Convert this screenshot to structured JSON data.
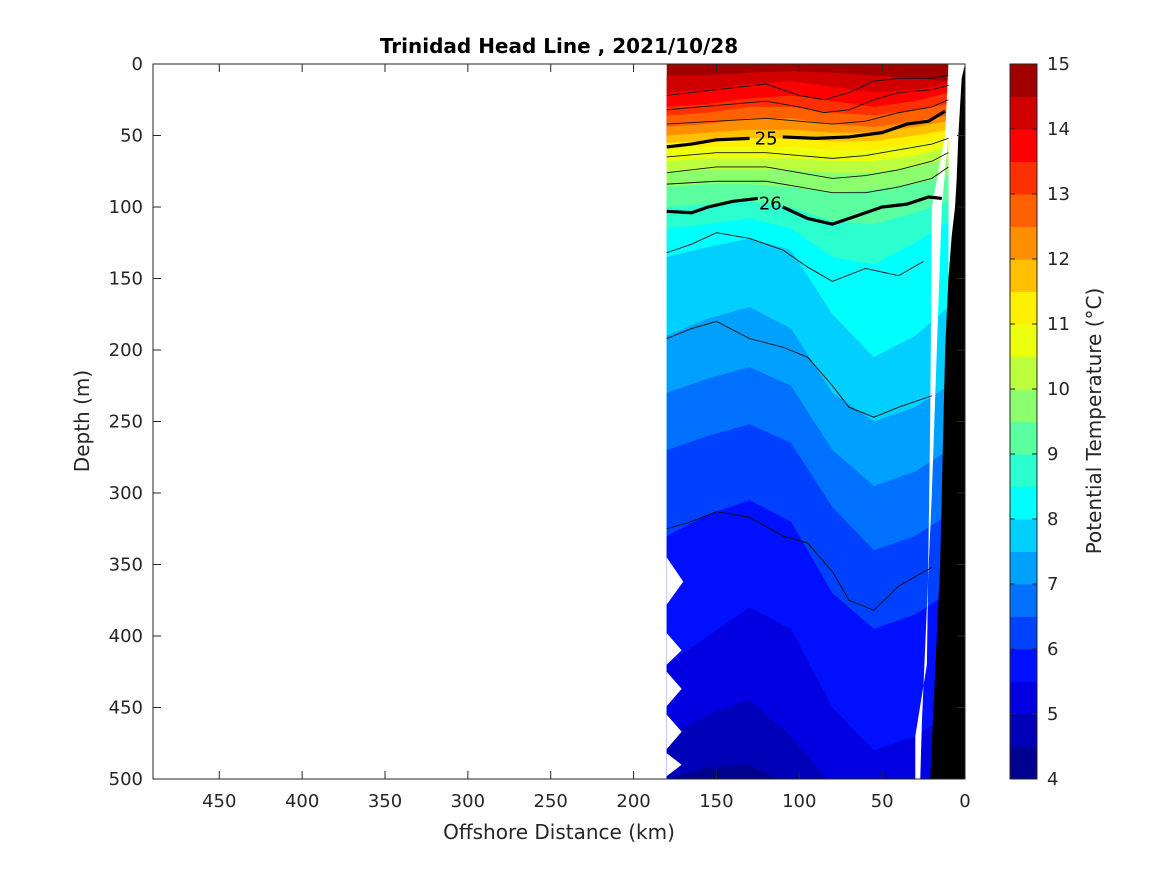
{
  "chart_data": {
    "type": "heatmap",
    "title": "Trinidad Head Line , 2021/10/28",
    "xlabel": "Offshore Distance (km)",
    "ylabel": "Depth (m)",
    "colorbar_label": "Potential Temperature (°C)",
    "xlim": [
      490,
      0
    ],
    "ylim": [
      500,
      0
    ],
    "x_ticks": [
      "450",
      "400",
      "350",
      "300",
      "250",
      "200",
      "150",
      "100",
      "50",
      "0"
    ],
    "y_ticks": [
      "0",
      "50",
      "100",
      "150",
      "200",
      "250",
      "300",
      "350",
      "400",
      "450",
      "500"
    ],
    "colorbar_ticks": [
      "4",
      "5",
      "6",
      "7",
      "8",
      "9",
      "10",
      "11",
      "12",
      "13",
      "14",
      "15"
    ],
    "colorbar_range": [
      4,
      15
    ],
    "colormap": [
      "#00008f",
      "#0000b8",
      "#0000e0",
      "#0010ff",
      "#0040ff",
      "#0070ff",
      "#00a0ff",
      "#00cfff",
      "#00ffff",
      "#2cffcf",
      "#5cff9f",
      "#8cff6f",
      "#bcff3f",
      "#ecff0f",
      "#ffef00",
      "#ffc000",
      "#ff8f00",
      "#ff6000",
      "#ff3000",
      "#ff0000",
      "#d00000",
      "#a00000"
    ],
    "section_x_range": [
      180,
      10
    ],
    "temperature_levels": [
      {
        "temp": 14.5,
        "depth": [
          8,
          8,
          6,
          5,
          6,
          8,
          10,
          12
        ]
      },
      {
        "temp": 14.0,
        "depth": [
          20,
          18,
          14,
          12,
          16,
          20,
          18,
          14
        ]
      },
      {
        "temp": 13.5,
        "depth": [
          30,
          28,
          24,
          22,
          26,
          30,
          26,
          20
        ]
      },
      {
        "temp": 13.0,
        "depth": [
          36,
          34,
          30,
          30,
          34,
          36,
          32,
          28
        ]
      },
      {
        "temp": 12.5,
        "depth": [
          44,
          42,
          38,
          38,
          42,
          44,
          40,
          36
        ]
      },
      {
        "temp": 12.0,
        "depth": [
          50,
          48,
          46,
          46,
          48,
          48,
          44,
          40
        ]
      },
      {
        "temp": 11.5,
        "depth": [
          55,
          54,
          52,
          52,
          54,
          54,
          50,
          46
        ]
      },
      {
        "temp": 11.0,
        "depth": [
          60,
          58,
          58,
          58,
          60,
          60,
          56,
          52
        ]
      },
      {
        "temp": 10.5,
        "depth": [
          68,
          66,
          66,
          66,
          68,
          68,
          64,
          58
        ]
      },
      {
        "temp": 10.0,
        "depth": [
          76,
          74,
          74,
          74,
          76,
          76,
          72,
          66
        ]
      },
      {
        "temp": 9.5,
        "depth": [
          86,
          84,
          84,
          86,
          90,
          88,
          84,
          78
        ]
      },
      {
        "temp": 9.0,
        "depth": [
          100,
          98,
          96,
          100,
          110,
          112,
          104,
          96
        ]
      },
      {
        "temp": 8.5,
        "depth": [
          115,
          112,
          108,
          115,
          135,
          140,
          125,
          110
        ]
      },
      {
        "temp": 8.0,
        "depth": [
          135,
          128,
          122,
          130,
          175,
          205,
          190,
          170
        ]
      },
      {
        "temp": 7.5,
        "depth": [
          190,
          178,
          170,
          185,
          230,
          250,
          240,
          225
        ]
      },
      {
        "temp": 7.0,
        "depth": [
          230,
          220,
          212,
          225,
          270,
          295,
          285,
          270
        ]
      },
      {
        "temp": 6.5,
        "depth": [
          270,
          260,
          252,
          265,
          310,
          340,
          330,
          315
        ]
      },
      {
        "temp": 6.0,
        "depth": [
          330,
          315,
          305,
          320,
          370,
          395,
          385,
          370
        ]
      },
      {
        "temp": 5.5,
        "depth": [
          420,
          400,
          380,
          395,
          450,
          480,
          470,
          455
        ]
      },
      {
        "temp": 5.0,
        "depth": [
          470,
          455,
          445,
          470,
          510,
          510,
          510,
          510
        ]
      },
      {
        "temp": 4.5,
        "depth": [
          500,
          492,
          490,
          510,
          510,
          510,
          510,
          510
        ]
      }
    ],
    "level_x": [
      180,
      155,
      130,
      105,
      80,
      55,
      30,
      10
    ],
    "density_contours": [
      {
        "label": "25",
        "x": [
          180,
          165,
          150,
          130,
          110,
          90,
          70,
          50,
          35,
          22,
          12
        ],
        "depth": [
          58,
          56,
          53,
          52,
          51,
          52,
          51,
          48,
          42,
          40,
          33
        ]
      },
      {
        "label": "26",
        "x": [
          180,
          165,
          155,
          140,
          125,
          110,
          95,
          80,
          65,
          50,
          35,
          22,
          14
        ],
        "depth": [
          103,
          104,
          100,
          96,
          94,
          100,
          108,
          112,
          106,
          100,
          98,
          93,
          94
        ]
      }
    ],
    "thin_contours": [
      {
        "x": [
          180,
          150,
          120,
          100,
          85,
          70,
          55,
          40,
          20,
          10
        ],
        "depth": [
          22,
          18,
          14,
          22,
          25,
          20,
          12,
          10,
          10,
          8
        ]
      },
      {
        "x": [
          180,
          150,
          120,
          100,
          85,
          70,
          55,
          40,
          20,
          10
        ],
        "depth": [
          32,
          29,
          26,
          30,
          34,
          32,
          25,
          20,
          18,
          15
        ]
      },
      {
        "x": [
          180,
          150,
          120,
          100,
          80,
          60,
          40,
          20,
          10
        ],
        "depth": [
          42,
          40,
          38,
          40,
          42,
          40,
          34,
          30,
          25
        ]
      },
      {
        "x": [
          180,
          150,
          120,
          100,
          80,
          60,
          40,
          20,
          10
        ],
        "depth": [
          65,
          62,
          62,
          64,
          66,
          64,
          60,
          56,
          52
        ]
      },
      {
        "x": [
          180,
          150,
          120,
          100,
          80,
          60,
          40,
          20,
          10
        ],
        "depth": [
          76,
          72,
          72,
          76,
          80,
          78,
          74,
          68,
          62
        ]
      },
      {
        "x": [
          180,
          150,
          120,
          100,
          80,
          60,
          40,
          20,
          10
        ],
        "depth": [
          84,
          82,
          82,
          86,
          90,
          90,
          86,
          80,
          72
        ]
      },
      {
        "x": [
          180,
          165,
          150,
          130,
          110,
          95,
          80,
          60,
          40,
          25
        ],
        "depth": [
          132,
          126,
          118,
          122,
          130,
          142,
          152,
          143,
          148,
          138
        ]
      },
      {
        "x": [
          180,
          165,
          150,
          130,
          110,
          95,
          80,
          70,
          55,
          40,
          20
        ],
        "depth": [
          192,
          185,
          180,
          192,
          198,
          205,
          225,
          240,
          247,
          240,
          232
        ]
      },
      {
        "x": [
          180,
          165,
          150,
          130,
          110,
          95,
          80,
          70,
          55,
          40,
          20
        ],
        "depth": [
          325,
          320,
          313,
          317,
          330,
          335,
          355,
          375,
          382,
          365,
          352
        ]
      }
    ],
    "bottom_profile": {
      "x": [
        21,
        19,
        17,
        15,
        14,
        13,
        12,
        10,
        8,
        6,
        5,
        4,
        3,
        2,
        1,
        0
      ],
      "depth": [
        500,
        450,
        400,
        350,
        300,
        250,
        200,
        150,
        120,
        100,
        80,
        50,
        30,
        10,
        5,
        0
      ]
    }
  }
}
